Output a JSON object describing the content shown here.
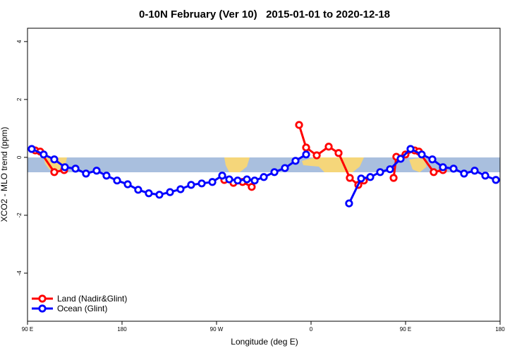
{
  "chart_data": {
    "type": "line",
    "title": "0-10N February (Ver 10)   2015-01-01 to 2020-12-18",
    "x_label": "Longitude (deg E)",
    "y_label": "XCO2 - MLO trend (ppm)",
    "xlim": [
      90,
      540
    ],
    "xticks": [
      {
        "value": 90,
        "label": "90 E"
      },
      {
        "value": 180,
        "label": "180"
      },
      {
        "value": 270,
        "label": "90 W"
      },
      {
        "value": 360,
        "label": "0"
      },
      {
        "value": 450,
        "label": "90 E"
      },
      {
        "value": 540,
        "label": "180"
      }
    ],
    "ylim": [
      -5.66,
      4.46
    ],
    "yticks": [
      -4,
      -2,
      0,
      2,
      4
    ],
    "legend": "bottom-left",
    "series": [
      {
        "name": "Land (Nadir&Glint)",
        "color": "#ff0000",
        "x": [
          97.4,
          102.1,
          115.5,
          124.9,
          null,
          277.4,
          286.1,
          294.8,
          303.5,
          null,
          348.6,
          355.3,
          365.4,
          376.8,
          386.2,
          396.9,
          405,
          410.3,
          null,
          438.6,
          441.2,
          449.9,
          458.7,
          462.7,
          476.8,
          485.6
        ],
        "values": [
          0.24,
          0.2,
          -0.51,
          -0.44,
          null,
          -0.78,
          -0.88,
          -0.85,
          -1.02,
          null,
          1.12,
          0.34,
          0.07,
          0.37,
          0.15,
          -0.71,
          -0.95,
          -0.8,
          null,
          -0.71,
          0.02,
          0.1,
          0.24,
          0.2,
          -0.51,
          -0.44
        ]
      },
      {
        "name": "Ocean (Glint)",
        "color": "#0000ff",
        "x": [
          94,
          105.4,
          115.5,
          125.6,
          135.7,
          145.7,
          155.8,
          165.2,
          175.3,
          185.4,
          195.4,
          205.5,
          215.6,
          225.7,
          235.7,
          245.8,
          255.9,
          266,
          275.4,
          282.1,
          290.1,
          298.9,
          306.3,
          315,
          325.1,
          335.1,
          345.2,
          355.3,
          null,
          396.2,
          407.7,
          416.4,
          425.8,
          435.2,
          445.3,
          454.7,
          465.4,
          475.5,
          485.6,
          495.7,
          505.7,
          515.8,
          525.9,
          536
        ],
        "values": [
          0.29,
          0.1,
          -0.07,
          -0.34,
          -0.39,
          -0.56,
          -0.46,
          -0.63,
          -0.8,
          -0.93,
          -1.12,
          -1.24,
          -1.29,
          -1.2,
          -1.1,
          -0.95,
          -0.9,
          -0.85,
          -0.63,
          -0.76,
          -0.8,
          -0.76,
          -0.8,
          -0.68,
          -0.51,
          -0.37,
          -0.12,
          0.1,
          null,
          -1.59,
          -0.73,
          -0.68,
          -0.51,
          -0.41,
          -0.05,
          0.29,
          0.1,
          -0.07,
          -0.34,
          -0.39,
          -0.56,
          -0.46,
          -0.63,
          -0.78
        ]
      }
    ]
  }
}
